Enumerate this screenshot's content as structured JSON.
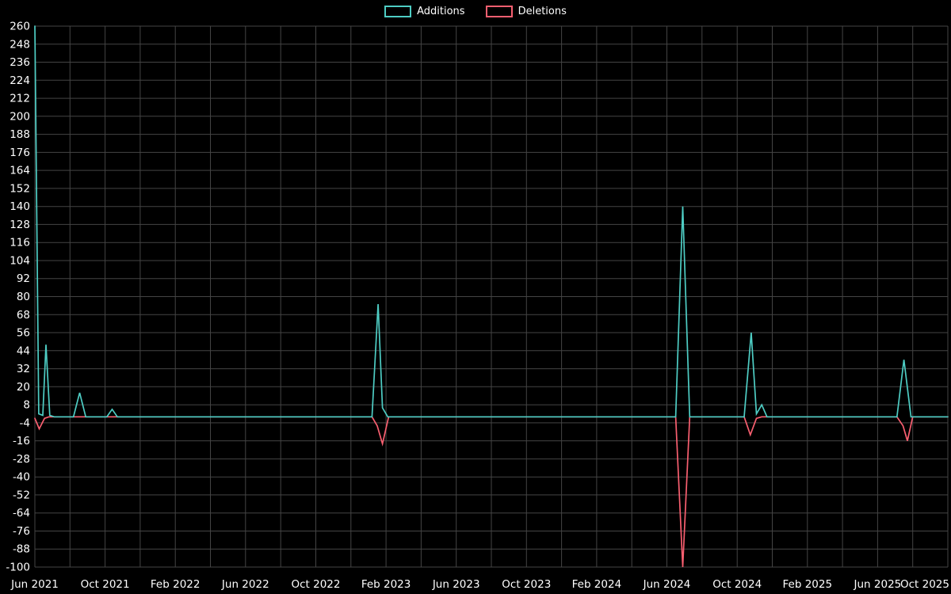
{
  "legend": {
    "items": [
      {
        "label": "Additions",
        "color": "#4ecdc4"
      },
      {
        "label": "Deletions",
        "color": "#f95f70"
      }
    ]
  },
  "chart_data": {
    "type": "line",
    "title": "",
    "xlabel": "",
    "ylabel": "",
    "legend_position": "top-center",
    "background_color": "#000000",
    "grid": true,
    "grid_color": "#444444",
    "text_color": "#ffffff",
    "x_range_months": [
      0,
      52
    ],
    "x_grid_step_months": 2,
    "y_range": [
      -100,
      260
    ],
    "y_tick_step": 12,
    "y_ticks": [
      260,
      248,
      236,
      224,
      212,
      200,
      188,
      176,
      164,
      152,
      140,
      128,
      116,
      104,
      92,
      80,
      68,
      56,
      44,
      32,
      20,
      8,
      -4,
      -16,
      -28,
      -40,
      -52,
      -64,
      -76,
      -88,
      -100
    ],
    "x_ticks": [
      {
        "month": 0,
        "label": "Jun 2021"
      },
      {
        "month": 4,
        "label": "Oct 2021"
      },
      {
        "month": 8,
        "label": "Feb 2022"
      },
      {
        "month": 12,
        "label": "Jun 2022"
      },
      {
        "month": 16,
        "label": "Oct 2022"
      },
      {
        "month": 20,
        "label": "Feb 2023"
      },
      {
        "month": 24,
        "label": "Jun 2023"
      },
      {
        "month": 28,
        "label": "Oct 2023"
      },
      {
        "month": 32,
        "label": "Feb 2024"
      },
      {
        "month": 36,
        "label": "Jun 2024"
      },
      {
        "month": 40,
        "label": "Oct 2024"
      },
      {
        "month": 44,
        "label": "Feb 2025"
      },
      {
        "month": 48,
        "label": "Jun 2025"
      },
      {
        "month": 52,
        "label": "Oct 2025"
      }
    ],
    "series": [
      {
        "name": "Deletions",
        "color": "#f95f70",
        "points": [
          [
            0,
            -1
          ],
          [
            0.25,
            -8
          ],
          [
            0.55,
            -1
          ],
          [
            0.8,
            0
          ],
          [
            19.2,
            0
          ],
          [
            19.5,
            -6
          ],
          [
            19.8,
            -18
          ],
          [
            20.15,
            0
          ],
          [
            36.5,
            0
          ],
          [
            36.9,
            -100
          ],
          [
            37.3,
            0
          ],
          [
            40.4,
            0
          ],
          [
            40.75,
            -12
          ],
          [
            41.1,
            -1
          ],
          [
            41.4,
            0
          ],
          [
            49.1,
            0
          ],
          [
            49.45,
            -6
          ],
          [
            49.7,
            -16
          ],
          [
            50,
            0
          ],
          [
            52,
            0
          ]
        ]
      },
      {
        "name": "Additions",
        "color": "#4ecdc4",
        "points": [
          [
            0,
            260
          ],
          [
            0.22,
            2
          ],
          [
            0.45,
            1
          ],
          [
            0.63,
            48
          ],
          [
            0.85,
            1
          ],
          [
            1.1,
            0
          ],
          [
            2.2,
            0
          ],
          [
            2.55,
            16
          ],
          [
            2.9,
            0
          ],
          [
            4.1,
            0
          ],
          [
            4.4,
            5
          ],
          [
            4.7,
            0
          ],
          [
            19.2,
            0
          ],
          [
            19.55,
            75
          ],
          [
            19.8,
            6
          ],
          [
            20.1,
            0
          ],
          [
            36.5,
            0
          ],
          [
            36.9,
            140
          ],
          [
            37.3,
            0
          ],
          [
            40.4,
            0
          ],
          [
            40.8,
            56
          ],
          [
            41.1,
            2
          ],
          [
            41.4,
            8
          ],
          [
            41.7,
            0
          ],
          [
            49.1,
            0
          ],
          [
            49.5,
            38
          ],
          [
            49.9,
            0
          ],
          [
            52,
            0
          ]
        ]
      }
    ]
  }
}
